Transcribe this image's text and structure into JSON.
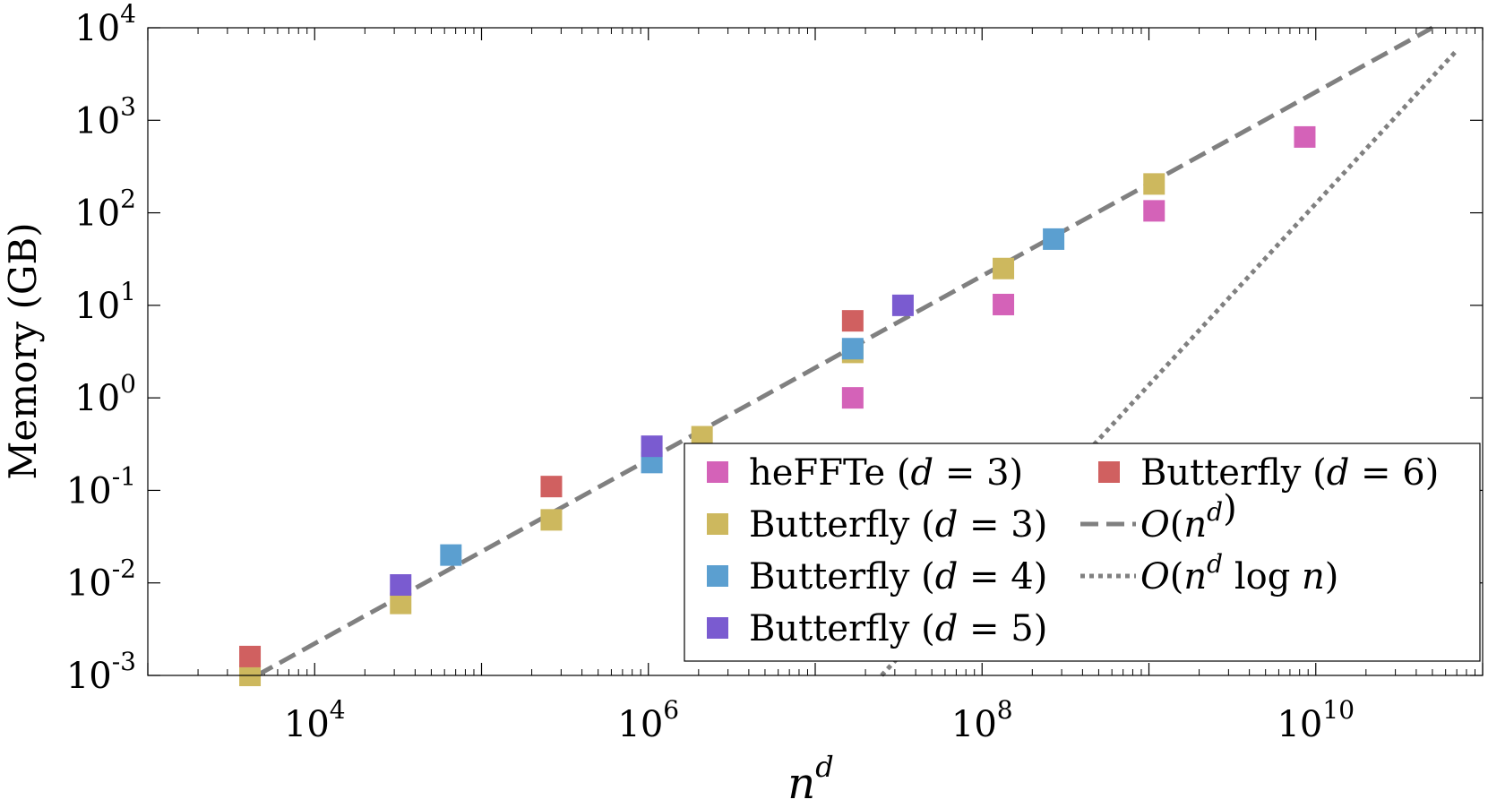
{
  "chart_data": {
    "type": "scatter",
    "xlabel_base": "n",
    "xlabel_sup": "d",
    "ylabel": "Memory (GB)",
    "xscale": "log",
    "yscale": "log",
    "xlim": [
      1000,
      100000000000
    ],
    "ylim": [
      0.001,
      10000
    ],
    "x_ticks": [
      {
        "value": 10000,
        "base": "10",
        "exp": "4"
      },
      {
        "value": 1000000,
        "base": "10",
        "exp": "6"
      },
      {
        "value": 100000000,
        "base": "10",
        "exp": "8"
      },
      {
        "value": 10000000000,
        "base": "10",
        "exp": "10"
      }
    ],
    "y_ticks": [
      {
        "value": 0.001,
        "base": "10",
        "exp": "-3"
      },
      {
        "value": 0.01,
        "base": "10",
        "exp": "-2"
      },
      {
        "value": 0.1,
        "base": "10",
        "exp": "-1"
      },
      {
        "value": 1,
        "base": "10",
        "exp": "0"
      },
      {
        "value": 10,
        "base": "10",
        "exp": "1"
      },
      {
        "value": 100,
        "base": "10",
        "exp": "2"
      },
      {
        "value": 1000,
        "base": "10",
        "exp": "3"
      },
      {
        "value": 10000,
        "base": "10",
        "exp": "4"
      }
    ],
    "series": [
      {
        "name": "heFFTe (d = 3)",
        "prefix": "heFFTe (",
        "var": "d",
        "suffix": " = 3)",
        "color": "#D462B8",
        "points": [
          [
            16777216,
            1.0
          ],
          [
            134217728,
            10.2
          ],
          [
            1073741824,
            105
          ],
          [
            8589934592,
            660
          ]
        ]
      },
      {
        "name": "Butterfly (d = 3)",
        "prefix": "Butterfly (",
        "var": "d",
        "suffix": " = 3)",
        "color": "#CDB85E",
        "points": [
          [
            4096,
            0.001
          ],
          [
            32768,
            0.006
          ],
          [
            262144,
            0.048
          ],
          [
            2097152,
            0.38
          ],
          [
            16777216,
            3.1
          ],
          [
            134217728,
            25
          ],
          [
            1073741824,
            205
          ]
        ]
      },
      {
        "name": "Butterfly (d = 4)",
        "prefix": "Butterfly (",
        "var": "d",
        "suffix": " = 4)",
        "color": "#5B9FD0",
        "points": [
          [
            65536,
            0.02
          ],
          [
            1048576,
            0.2
          ],
          [
            16777216,
            3.4
          ],
          [
            268435456,
            52
          ]
        ]
      },
      {
        "name": "Butterfly (d = 5)",
        "prefix": "Butterfly (",
        "var": "d",
        "suffix": " = 5)",
        "color": "#7A5BD0",
        "points": [
          [
            32768,
            0.0095
          ],
          [
            1048576,
            0.3
          ],
          [
            33554432,
            10
          ]
        ]
      },
      {
        "name": "Butterfly (d = 6)",
        "prefix": "Butterfly (",
        "var": "d",
        "suffix": " = 6)",
        "color": "#D06060",
        "points": [
          [
            4096,
            0.0016
          ],
          [
            262144,
            0.11
          ],
          [
            16777216,
            6.8
          ]
        ]
      }
    ],
    "reference_lines": [
      {
        "name": "O(n^d)",
        "style": "dashed",
        "color": "#808080",
        "from": [
          4500,
          0.001
        ],
        "to": [
          50000000000,
          10000
        ]
      },
      {
        "name": "O(n^d log n)",
        "style": "dotted",
        "color": "#808080",
        "from": [
          25000000,
          0.001
        ],
        "to": [
          70000000000,
          5700
        ]
      }
    ],
    "legend": {
      "position": "lower-right",
      "ref_labels": [
        {
          "text": "O(n^d)",
          "O": "O",
          "open": "(",
          "n": "n",
          "sup": "d",
          "log": "",
          "n2": "",
          "close": ")"
        },
        {
          "text": "O(n^d log n)",
          "O": "O",
          "open": "(",
          "n": "n",
          "sup": "d",
          "log": " log ",
          "n2": "n",
          "close": ")"
        }
      ]
    }
  }
}
